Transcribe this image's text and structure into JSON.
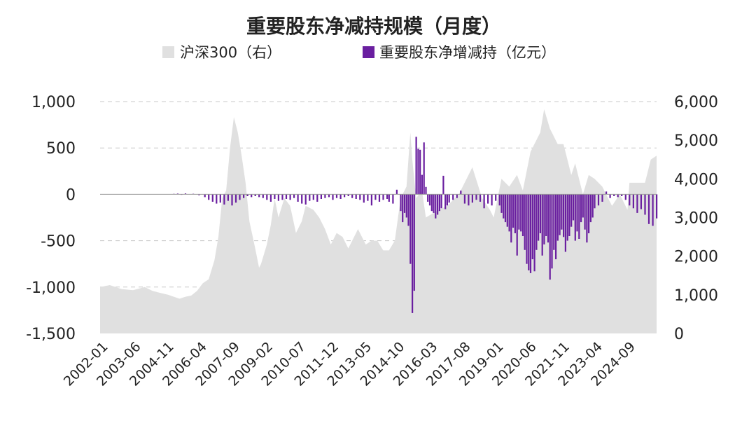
{
  "chart_data": {
    "type": "bar+area",
    "title": "重要股东净减持规模（月度）",
    "legend": {
      "position": "top",
      "items": [
        {
          "name": "沪深300（右）",
          "color": "#e0e0e0",
          "marker": "square"
        },
        {
          "name": "重要股东净增减持（亿元）",
          "color": "#6a1fa0",
          "marker": "square"
        }
      ]
    },
    "x_range": [
      "2002-01",
      "2025-12"
    ],
    "x_tick_labels": [
      "2002-01",
      "2003-06",
      "2004-11",
      "2006-04",
      "2007-09",
      "2009-02",
      "2010-07",
      "2011-12",
      "2013-05",
      "2014-10",
      "2016-03",
      "2017-08",
      "2019-01",
      "2020-06",
      "2021-11",
      "2023-04",
      "2024-09"
    ],
    "y_left": {
      "ticks": [
        1000,
        500,
        0,
        -500,
        -1000,
        -1500
      ],
      "tick_labels": [
        "1,000",
        "500",
        "0",
        "-500",
        "-1,000",
        "-1,500"
      ],
      "range": [
        -1500,
        1000
      ]
    },
    "y_right": {
      "ticks": [
        6000,
        5000,
        4000,
        3000,
        2000,
        1000,
        0
      ],
      "tick_labels": [
        "6,000",
        "5,000",
        "4,000",
        "3,000",
        "2,000",
        "1,000",
        "0"
      ],
      "range": [
        0,
        6000
      ]
    },
    "grid": "horizontal dashed",
    "series_area": {
      "name": "沪深300（右）",
      "axis": "right",
      "color": "#e0e0e0",
      "points": [
        [
          "2002-01",
          1200
        ],
        [
          "2002-06",
          1250
        ],
        [
          "2002-12",
          1150
        ],
        [
          "2003-06",
          1120
        ],
        [
          "2003-12",
          1200
        ],
        [
          "2004-04",
          1100
        ],
        [
          "2004-08",
          1050
        ],
        [
          "2004-12",
          1000
        ],
        [
          "2005-03",
          950
        ],
        [
          "2005-06",
          900
        ],
        [
          "2005-09",
          950
        ],
        [
          "2005-12",
          980
        ],
        [
          "2006-03",
          1100
        ],
        [
          "2006-06",
          1300
        ],
        [
          "2006-09",
          1400
        ],
        [
          "2006-12",
          1900
        ],
        [
          "2007-02",
          2500
        ],
        [
          "2007-04",
          3500
        ],
        [
          "2007-06",
          3700
        ],
        [
          "2007-08",
          4800
        ],
        [
          "2007-10",
          5600
        ],
        [
          "2007-12",
          5200
        ],
        [
          "2008-02",
          4600
        ],
        [
          "2008-04",
          3900
        ],
        [
          "2008-06",
          2900
        ],
        [
          "2008-09",
          2200
        ],
        [
          "2008-11",
          1700
        ],
        [
          "2008-12",
          1800
        ],
        [
          "2009-03",
          2300
        ],
        [
          "2009-05",
          2800
        ],
        [
          "2009-07",
          3500
        ],
        [
          "2009-09",
          3000
        ],
        [
          "2009-12",
          3500
        ],
        [
          "2010-03",
          3300
        ],
        [
          "2010-06",
          2600
        ],
        [
          "2010-09",
          2900
        ],
        [
          "2010-11",
          3300
        ],
        [
          "2011-03",
          3200
        ],
        [
          "2011-06",
          3000
        ],
        [
          "2011-09",
          2700
        ],
        [
          "2011-12",
          2300
        ],
        [
          "2012-03",
          2600
        ],
        [
          "2012-06",
          2500
        ],
        [
          "2012-09",
          2200
        ],
        [
          "2012-12",
          2500
        ],
        [
          "2013-02",
          2700
        ],
        [
          "2013-06",
          2300
        ],
        [
          "2013-09",
          2400
        ],
        [
          "2013-12",
          2400
        ],
        [
          "2014-03",
          2150
        ],
        [
          "2014-06",
          2150
        ],
        [
          "2014-09",
          2400
        ],
        [
          "2014-12",
          3500
        ],
        [
          "2015-03",
          3800
        ],
        [
          "2015-05",
          5200
        ],
        [
          "2015-06",
          4500
        ],
        [
          "2015-08",
          3500
        ],
        [
          "2015-11",
          3700
        ],
        [
          "2016-01",
          3000
        ],
        [
          "2016-06",
          3150
        ],
        [
          "2016-12",
          3300
        ],
        [
          "2017-06",
          3600
        ],
        [
          "2017-11",
          4100
        ],
        [
          "2018-01",
          4300
        ],
        [
          "2018-06",
          3500
        ],
        [
          "2018-10",
          3200
        ],
        [
          "2018-12",
          3000
        ],
        [
          "2019-04",
          4000
        ],
        [
          "2019-08",
          3800
        ],
        [
          "2019-12",
          4100
        ],
        [
          "2020-03",
          3700
        ],
        [
          "2020-07",
          4700
        ],
        [
          "2020-12",
          5200
        ],
        [
          "2021-02",
          5800
        ],
        [
          "2021-05",
          5300
        ],
        [
          "2021-09",
          4900
        ],
        [
          "2021-12",
          4900
        ],
        [
          "2022-04",
          4100
        ],
        [
          "2022-06",
          4400
        ],
        [
          "2022-10",
          3600
        ],
        [
          "2023-01",
          4100
        ],
        [
          "2023-04",
          4000
        ],
        [
          "2023-08",
          3800
        ],
        [
          "2023-12",
          3400
        ],
        [
          "2024-01",
          3300
        ],
        [
          "2024-05",
          3600
        ],
        [
          "2024-09",
          3200
        ],
        [
          "2024-10",
          3900
        ],
        [
          "2025-03",
          3900
        ],
        [
          "2025-06",
          3900
        ],
        [
          "2025-09",
          4500
        ],
        [
          "2025-12",
          4600
        ]
      ]
    },
    "series_bar": {
      "name": "重要股东净增减持（亿元）",
      "axis": "left",
      "color": "#6a1fa0",
      "points": [
        [
          "2005-03",
          5
        ],
        [
          "2005-05",
          8
        ],
        [
          "2005-07",
          -5
        ],
        [
          "2005-09",
          10
        ],
        [
          "2006-01",
          6
        ],
        [
          "2006-04",
          -10
        ],
        [
          "2006-07",
          -30
        ],
        [
          "2006-09",
          -60
        ],
        [
          "2006-11",
          -80
        ],
        [
          "2007-01",
          -100
        ],
        [
          "2007-03",
          -90
        ],
        [
          "2007-05",
          -110
        ],
        [
          "2007-07",
          -70
        ],
        [
          "2007-09",
          -120
        ],
        [
          "2007-11",
          -90
        ],
        [
          "2008-01",
          -60
        ],
        [
          "2008-03",
          -40
        ],
        [
          "2008-05",
          -20
        ],
        [
          "2008-07",
          -30
        ],
        [
          "2008-09",
          -20
        ],
        [
          "2008-11",
          -30
        ],
        [
          "2009-01",
          -40
        ],
        [
          "2009-03",
          -60
        ],
        [
          "2009-05",
          -80
        ],
        [
          "2009-07",
          -50
        ],
        [
          "2009-09",
          -70
        ],
        [
          "2009-11",
          -60
        ],
        [
          "2010-01",
          -50
        ],
        [
          "2010-03",
          -60
        ],
        [
          "2010-05",
          -40
        ],
        [
          "2010-07",
          -80
        ],
        [
          "2010-09",
          -100
        ],
        [
          "2010-11",
          -110
        ],
        [
          "2011-01",
          -70
        ],
        [
          "2011-03",
          -60
        ],
        [
          "2011-05",
          -80
        ],
        [
          "2011-07",
          -50
        ],
        [
          "2011-09",
          -40
        ],
        [
          "2011-11",
          -30
        ],
        [
          "2012-01",
          -60
        ],
        [
          "2012-03",
          -40
        ],
        [
          "2012-05",
          -50
        ],
        [
          "2012-07",
          -30
        ],
        [
          "2012-09",
          -20
        ],
        [
          "2012-11",
          -40
        ],
        [
          "2013-01",
          -50
        ],
        [
          "2013-03",
          -60
        ],
        [
          "2013-05",
          -90
        ],
        [
          "2013-07",
          -70
        ],
        [
          "2013-09",
          -120
        ],
        [
          "2013-11",
          -60
        ],
        [
          "2014-01",
          -80
        ],
        [
          "2014-03",
          -60
        ],
        [
          "2014-05",
          -50
        ],
        [
          "2014-06",
          -80
        ],
        [
          "2014-08",
          -100
        ],
        [
          "2014-10",
          50
        ],
        [
          "2014-12",
          -180
        ],
        [
          "2015-01",
          -300
        ],
        [
          "2015-02",
          -200
        ],
        [
          "2015-03",
          -250
        ],
        [
          "2015-04",
          -340
        ],
        [
          "2015-05",
          -750
        ],
        [
          "2015-06",
          -1280
        ],
        [
          "2015-07",
          -1040
        ],
        [
          "2015-08",
          620
        ],
        [
          "2015-09",
          490
        ],
        [
          "2015-10",
          480
        ],
        [
          "2015-11",
          210
        ],
        [
          "2015-12",
          560
        ],
        [
          "2016-01",
          80
        ],
        [
          "2016-02",
          -80
        ],
        [
          "2016-03",
          -120
        ],
        [
          "2016-04",
          -180
        ],
        [
          "2016-05",
          -200
        ],
        [
          "2016-06",
          -260
        ],
        [
          "2016-07",
          -220
        ],
        [
          "2016-08",
          -180
        ],
        [
          "2016-09",
          -150
        ],
        [
          "2016-10",
          200
        ],
        [
          "2016-11",
          -160
        ],
        [
          "2016-12",
          -120
        ],
        [
          "2017-01",
          -90
        ],
        [
          "2017-03",
          -60
        ],
        [
          "2017-05",
          -40
        ],
        [
          "2017-07",
          40
        ],
        [
          "2017-09",
          -100
        ],
        [
          "2017-11",
          -120
        ],
        [
          "2018-01",
          -90
        ],
        [
          "2018-03",
          -60
        ],
        [
          "2018-05",
          -80
        ],
        [
          "2018-07",
          -150
        ],
        [
          "2018-09",
          -100
        ],
        [
          "2018-11",
          -120
        ],
        [
          "2019-01",
          -70
        ],
        [
          "2019-03",
          -120
        ],
        [
          "2019-04",
          -200
        ],
        [
          "2019-05",
          -260
        ],
        [
          "2019-06",
          -300
        ],
        [
          "2019-07",
          -350
        ],
        [
          "2019-08",
          -400
        ],
        [
          "2019-09",
          -520
        ],
        [
          "2019-10",
          -360
        ],
        [
          "2019-11",
          -420
        ],
        [
          "2019-12",
          -660
        ],
        [
          "2020-01",
          -380
        ],
        [
          "2020-02",
          -400
        ],
        [
          "2020-03",
          -450
        ],
        [
          "2020-04",
          -600
        ],
        [
          "2020-05",
          -750
        ],
        [
          "2020-06",
          -820
        ],
        [
          "2020-07",
          -850
        ],
        [
          "2020-08",
          -700
        ],
        [
          "2020-09",
          -830
        ],
        [
          "2020-10",
          -600
        ],
        [
          "2020-11",
          -500
        ],
        [
          "2020-12",
          -420
        ],
        [
          "2021-01",
          -660
        ],
        [
          "2021-02",
          -540
        ],
        [
          "2021-03",
          -450
        ],
        [
          "2021-04",
          -520
        ],
        [
          "2021-05",
          -920
        ],
        [
          "2021-06",
          -800
        ],
        [
          "2021-07",
          -600
        ],
        [
          "2021-08",
          -700
        ],
        [
          "2021-09",
          -500
        ],
        [
          "2021-10",
          -440
        ],
        [
          "2021-11",
          -380
        ],
        [
          "2021-12",
          -460
        ],
        [
          "2022-01",
          -620
        ],
        [
          "2022-02",
          -500
        ],
        [
          "2022-03",
          -450
        ],
        [
          "2022-04",
          -350
        ],
        [
          "2022-05",
          -280
        ],
        [
          "2022-06",
          -500
        ],
        [
          "2022-07",
          -400
        ],
        [
          "2022-08",
          -480
        ],
        [
          "2022-09",
          -300
        ],
        [
          "2022-10",
          -250
        ],
        [
          "2022-11",
          -380
        ],
        [
          "2022-12",
          -520
        ],
        [
          "2023-01",
          -420
        ],
        [
          "2023-02",
          -300
        ],
        [
          "2023-03",
          -250
        ],
        [
          "2023-04",
          -150
        ],
        [
          "2023-06",
          -120
        ],
        [
          "2023-08",
          -80
        ],
        [
          "2023-10",
          30
        ],
        [
          "2023-12",
          -40
        ],
        [
          "2024-02",
          -20
        ],
        [
          "2024-04",
          -30
        ],
        [
          "2024-06",
          -20
        ],
        [
          "2024-08",
          -60
        ],
        [
          "2024-10",
          -120
        ],
        [
          "2024-12",
          -150
        ],
        [
          "2025-02",
          -200
        ],
        [
          "2025-04",
          -160
        ],
        [
          "2025-06",
          -220
        ],
        [
          "2025-08",
          -320
        ],
        [
          "2025-10",
          -340
        ],
        [
          "2025-12",
          -260
        ]
      ]
    }
  }
}
